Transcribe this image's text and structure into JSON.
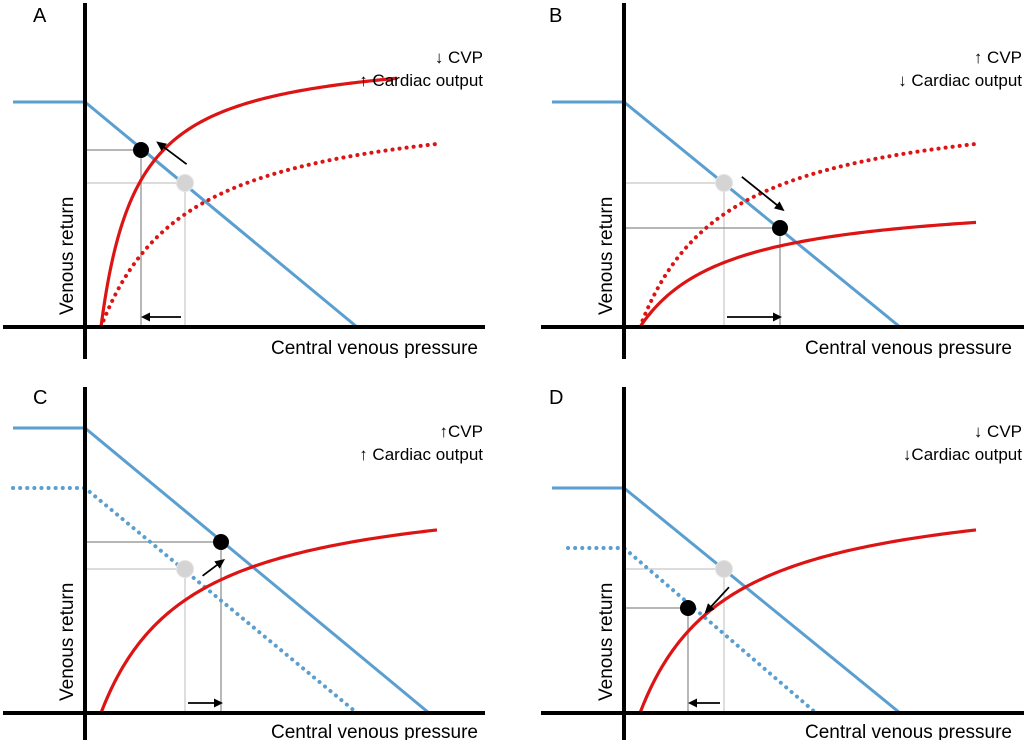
{
  "figure": {
    "axis_x_label": "Central venous pressure",
    "axis_y_label": "Venous return",
    "colors": {
      "venous_return_curve": "#5a9fd0",
      "cardiac_function_curve": "#dd1414",
      "axis": "#000000",
      "new_equilibrium": "#000000",
      "old_equilibrium": "#d4d4d4",
      "guide_line": "#888888"
    }
  },
  "chart_data": [
    {
      "type": "line",
      "panel": "A",
      "annotations": [
        "↓ CVP",
        "↑ Cardiac output"
      ],
      "xlabel": "Central venous pressure",
      "ylabel": "Venous return",
      "xlim": [
        0,
        1
      ],
      "ylim": [
        0,
        1
      ],
      "series": [
        {
          "name": "venous return curve",
          "style": "solid",
          "color": "venous_return_curve",
          "points": [
            [
              -0.18,
              0.75
            ],
            [
              0,
              0.75
            ],
            [
              0.68,
              0
            ]
          ]
        },
        {
          "name": "cardiac function curve (new)",
          "style": "solid",
          "color": "cardiac_function_curve",
          "x0": 0.04,
          "x1": 0.78,
          "ymax": 0.93,
          "k": 0.09
        },
        {
          "name": "cardiac function curve (baseline)",
          "style": "dotted",
          "color": "cardiac_function_curve",
          "x0": 0.04,
          "x1": 0.88,
          "ymax": 0.77,
          "k": 0.22
        }
      ],
      "equilibrium_old": [
        0.25,
        0.48
      ],
      "equilibrium_new": [
        0.14,
        0.59
      ],
      "shift": "left"
    },
    {
      "type": "line",
      "panel": "B",
      "annotations": [
        "↑ CVP",
        "↓ Cardiac output"
      ],
      "xlabel": "Central venous pressure",
      "ylabel": "Venous return",
      "xlim": [
        0,
        1
      ],
      "ylim": [
        0,
        1
      ],
      "series": [
        {
          "name": "venous return curve",
          "style": "solid",
          "color": "venous_return_curve",
          "points": [
            [
              -0.18,
              0.75
            ],
            [
              0,
              0.75
            ],
            [
              0.69,
              0
            ]
          ]
        },
        {
          "name": "cardiac function curve (baseline)",
          "style": "dotted",
          "color": "cardiac_function_curve",
          "x0": 0.04,
          "x1": 0.88,
          "ymax": 0.77,
          "k": 0.22
        },
        {
          "name": "cardiac function curve (new)",
          "style": "solid",
          "color": "cardiac_function_curve",
          "x0": 0.04,
          "x1": 0.88,
          "ymax": 0.44,
          "k": 0.22
        }
      ],
      "equilibrium_old": [
        0.25,
        0.48
      ],
      "equilibrium_new": [
        0.39,
        0.33
      ],
      "shift": "right"
    },
    {
      "type": "line",
      "panel": "C",
      "annotations": [
        "↑CVP",
        "↑ Cardiac output"
      ],
      "xlabel": "Central venous pressure",
      "ylabel": "Venous return",
      "xlim": [
        0,
        1
      ],
      "ylim": [
        0,
        1
      ],
      "series": [
        {
          "name": "venous return curve (new)",
          "style": "solid",
          "color": "venous_return_curve",
          "points": [
            [
              -0.18,
              0.95
            ],
            [
              0,
              0.95
            ],
            [
              0.86,
              0
            ]
          ]
        },
        {
          "name": "venous return curve (baseline)",
          "style": "dotted",
          "color": "venous_return_curve",
          "points": [
            [
              -0.18,
              0.75
            ],
            [
              0,
              0.75
            ],
            [
              0.68,
              0
            ]
          ]
        },
        {
          "name": "cardiac function curve",
          "style": "solid",
          "color": "cardiac_function_curve",
          "x0": 0.04,
          "x1": 0.88,
          "ymax": 0.77,
          "k": 0.22
        }
      ],
      "equilibrium_old": [
        0.25,
        0.48
      ],
      "equilibrium_new": [
        0.34,
        0.57
      ],
      "shift": "right"
    },
    {
      "type": "line",
      "panel": "D",
      "annotations": [
        "↓ CVP",
        "↓Cardiac output"
      ],
      "xlabel": "Central venous pressure",
      "ylabel": "Venous return",
      "xlim": [
        0,
        1
      ],
      "ylim": [
        0,
        1
      ],
      "series": [
        {
          "name": "venous return curve (baseline)",
          "style": "solid",
          "color": "venous_return_curve",
          "points": [
            [
              -0.18,
              0.75
            ],
            [
              0,
              0.75
            ],
            [
              0.69,
              0
            ]
          ]
        },
        {
          "name": "venous return curve (new)",
          "style": "dotted",
          "color": "venous_return_curve",
          "points": [
            [
              -0.14,
              0.55
            ],
            [
              0,
              0.55
            ],
            [
              0.48,
              0
            ]
          ]
        },
        {
          "name": "cardiac function curve",
          "style": "solid",
          "color": "cardiac_function_curve",
          "x0": 0.04,
          "x1": 0.88,
          "ymax": 0.77,
          "k": 0.22
        }
      ],
      "equilibrium_old": [
        0.25,
        0.48
      ],
      "equilibrium_new": [
        0.16,
        0.35
      ],
      "shift": "left"
    }
  ]
}
